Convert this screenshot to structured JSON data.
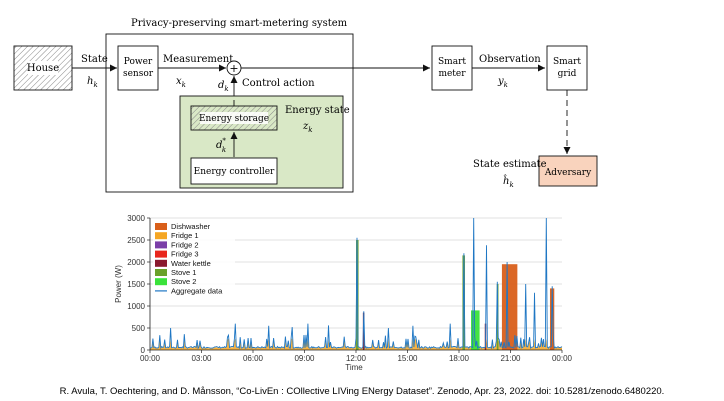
{
  "diagram": {
    "system_title": "Privacy-preserving smart-metering system",
    "house": "House",
    "state_label": "State",
    "state_var": "h",
    "state_sub": "k",
    "power_sensor_line1": "Power",
    "power_sensor_line2": "sensor",
    "measurement_label": "Measurement",
    "meas_var": "x",
    "meas_sub": "k",
    "plus": "+",
    "ctrl_var": "d",
    "ctrl_sub": "k",
    "control_action": "Control action",
    "energy_state_label": "Energy state",
    "energy_state_var": "z",
    "energy_state_sub": "k",
    "energy_storage": "Energy storage",
    "dstar_var": "d",
    "dstar_sup": "*",
    "dstar_sub": "k",
    "energy_controller": "Energy controller",
    "smart_meter_line1": "Smart",
    "smart_meter_line2": "meter",
    "observation_label": "Observation",
    "obs_var": "y",
    "obs_sub": "k",
    "smart_grid_line1": "Smart",
    "smart_grid_line2": "grid",
    "state_estimate_label": "State estimate",
    "estimate_var": "ĥ",
    "estimate_sub": "k",
    "adversary": "Adversary"
  },
  "chart_data": {
    "type": "area",
    "ylabel": "Power (W)",
    "xlabel": "Time",
    "ylim": [
      0,
      3000
    ],
    "yticks": [
      "0",
      "500",
      "1000",
      "1500",
      "2000",
      "2500",
      "3000"
    ],
    "xticks": [
      "00:00",
      "03:00",
      "06:00",
      "09:00",
      "12:00",
      "15:00",
      "18:00",
      "21:00",
      "00:00"
    ],
    "xlim": [
      0,
      24
    ],
    "grid": true,
    "legend_position": "top-left",
    "series": [
      {
        "name": "Dishwasher",
        "color": "#d95f1a"
      },
      {
        "name": "Fridge 1",
        "color": "#f5a623"
      },
      {
        "name": "Fridge 2",
        "color": "#7b3fa8"
      },
      {
        "name": "Fridge 3",
        "color": "#e8261c"
      },
      {
        "name": "Water kettle",
        "color": "#8a1a2e"
      },
      {
        "name": "Stove 1",
        "color": "#6aa12a"
      },
      {
        "name": "Stove 2",
        "color": "#3ae23a"
      },
      {
        "name": "Aggregate data",
        "color": "#1f77c4"
      }
    ],
    "events": [
      {
        "series": "Dishwasher",
        "start": 20.5,
        "end": 21.4,
        "value": 1950
      },
      {
        "series": "Dishwasher",
        "start": 23.3,
        "end": 23.55,
        "value": 1400
      },
      {
        "series": "Stove 2",
        "start": 18.7,
        "end": 19.2,
        "value": 900
      },
      {
        "series": "Stove 1",
        "start": 12.0,
        "end": 12.15,
        "value": 2500
      },
      {
        "series": "Stove 1",
        "start": 18.2,
        "end": 18.35,
        "value": 2150
      },
      {
        "series": "Stove 1",
        "start": 20.2,
        "end": 20.3,
        "value": 1500
      },
      {
        "series": "Water kettle",
        "start": 12.4,
        "end": 12.45,
        "value": 850
      },
      {
        "series": "Water kettle",
        "start": 19.5,
        "end": 19.55,
        "value": 600
      }
    ],
    "aggregate_peaks": [
      {
        "t": 1.2,
        "v": 500
      },
      {
        "t": 5.0,
        "v": 600
      },
      {
        "t": 6.9,
        "v": 550
      },
      {
        "t": 8.3,
        "v": 520
      },
      {
        "t": 9.2,
        "v": 600
      },
      {
        "t": 10.4,
        "v": 560
      },
      {
        "t": 12.05,
        "v": 2550
      },
      {
        "t": 12.45,
        "v": 880
      },
      {
        "t": 13.9,
        "v": 500
      },
      {
        "t": 15.3,
        "v": 550
      },
      {
        "t": 17.5,
        "v": 600
      },
      {
        "t": 18.3,
        "v": 2200
      },
      {
        "t": 18.85,
        "v": 3000
      },
      {
        "t": 19.6,
        "v": 2380
      },
      {
        "t": 20.25,
        "v": 1550
      },
      {
        "t": 20.8,
        "v": 2000
      },
      {
        "t": 21.9,
        "v": 1500
      },
      {
        "t": 22.4,
        "v": 1300
      },
      {
        "t": 23.1,
        "v": 3000
      },
      {
        "t": 23.45,
        "v": 1450
      }
    ]
  },
  "caption": "R. Avula, T. Oechtering, and D. Månsson, “Co-LivEn : COllective LIVing ENergy Dataset”. Zenodo, Apr. 23, 2022. doi: 10.5281/zenodo.6480220."
}
